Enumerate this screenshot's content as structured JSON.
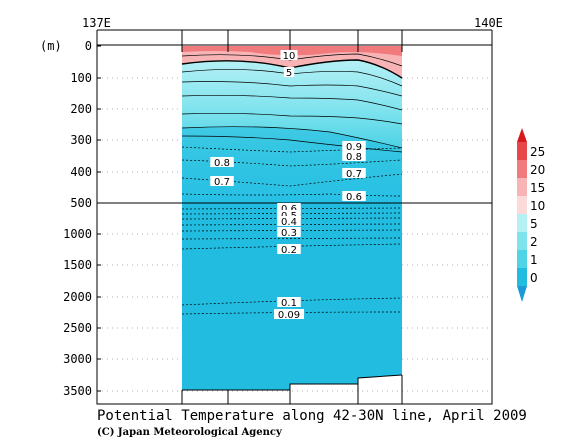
{
  "chart_data": {
    "type": "heatmap",
    "title": "Potential Temperature along 42-30N line, April 2009",
    "credit": "(C) Japan Meteorological Agency",
    "ylabel": "(m)",
    "x_ticks": [
      "137E",
      "140E"
    ],
    "x_range": [
      137,
      140
    ],
    "y_ticks": [
      "0",
      "100",
      "200",
      "300",
      "400",
      "500",
      "1000",
      "1500",
      "2000",
      "2500",
      "3000",
      "3500"
    ],
    "y_axis_break": "500",
    "upper_depth_range": [
      0,
      500
    ],
    "lower_depth_range": [
      500,
      3800
    ],
    "colorbar": {
      "levels": [
        "25",
        "20",
        "15",
        "10",
        "5",
        "2",
        "1",
        "0"
      ],
      "colors": [
        "#d7191c",
        "#e8474a",
        "#f07a7c",
        "#f8b4b5",
        "#fddada",
        "#b5f0f5",
        "#7fe3ee",
        "#4fd3e6",
        "#21bce0",
        "#1a9bd8"
      ]
    },
    "contour_labels": [
      "10",
      "5",
      "0.9",
      "0.8",
      "0.8",
      "0.7",
      "0.7",
      "0.6",
      "0.6",
      "0.5",
      "0.4",
      "0.3",
      "0.2",
      "0.1",
      "0.09"
    ]
  }
}
